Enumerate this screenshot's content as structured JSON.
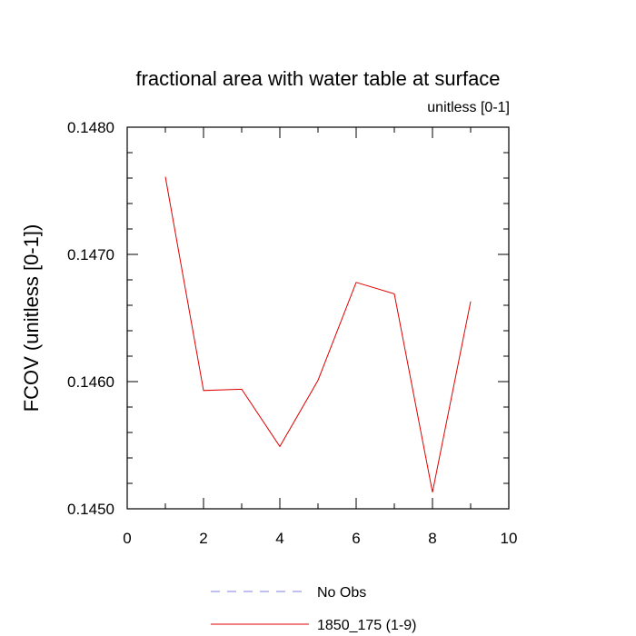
{
  "chart_data": {
    "type": "line",
    "title": "fractional area with water table at surface",
    "subtitle": "unitless [0-1]",
    "xlabel": "",
    "ylabel": "FCOV  (unitless [0-1])",
    "xlim": [
      0,
      10
    ],
    "ylim": [
      0.145,
      0.148
    ],
    "x_ticks": [
      0,
      2,
      4,
      6,
      8,
      10
    ],
    "x_tick_labels": [
      "0",
      "2",
      "4",
      "6",
      "8",
      "10"
    ],
    "y_ticks": [
      0.145,
      0.146,
      0.147,
      0.148
    ],
    "y_tick_labels": [
      "0.1450",
      "0.1460",
      "0.1470",
      "0.1480"
    ],
    "grid": false,
    "legend_position": "bottom-center",
    "series": [
      {
        "name": "No Obs",
        "color": "#8080e0",
        "dash": true,
        "x": [],
        "y": []
      },
      {
        "name": "1850_175 (1-9)",
        "color": "#e00000",
        "dash": false,
        "x": [
          1,
          2,
          3,
          4,
          5,
          6,
          7,
          8,
          9
        ],
        "y": [
          0.14761,
          0.14593,
          0.14594,
          0.14549,
          0.14601,
          0.14678,
          0.14669,
          0.14513,
          0.14663
        ]
      }
    ]
  }
}
